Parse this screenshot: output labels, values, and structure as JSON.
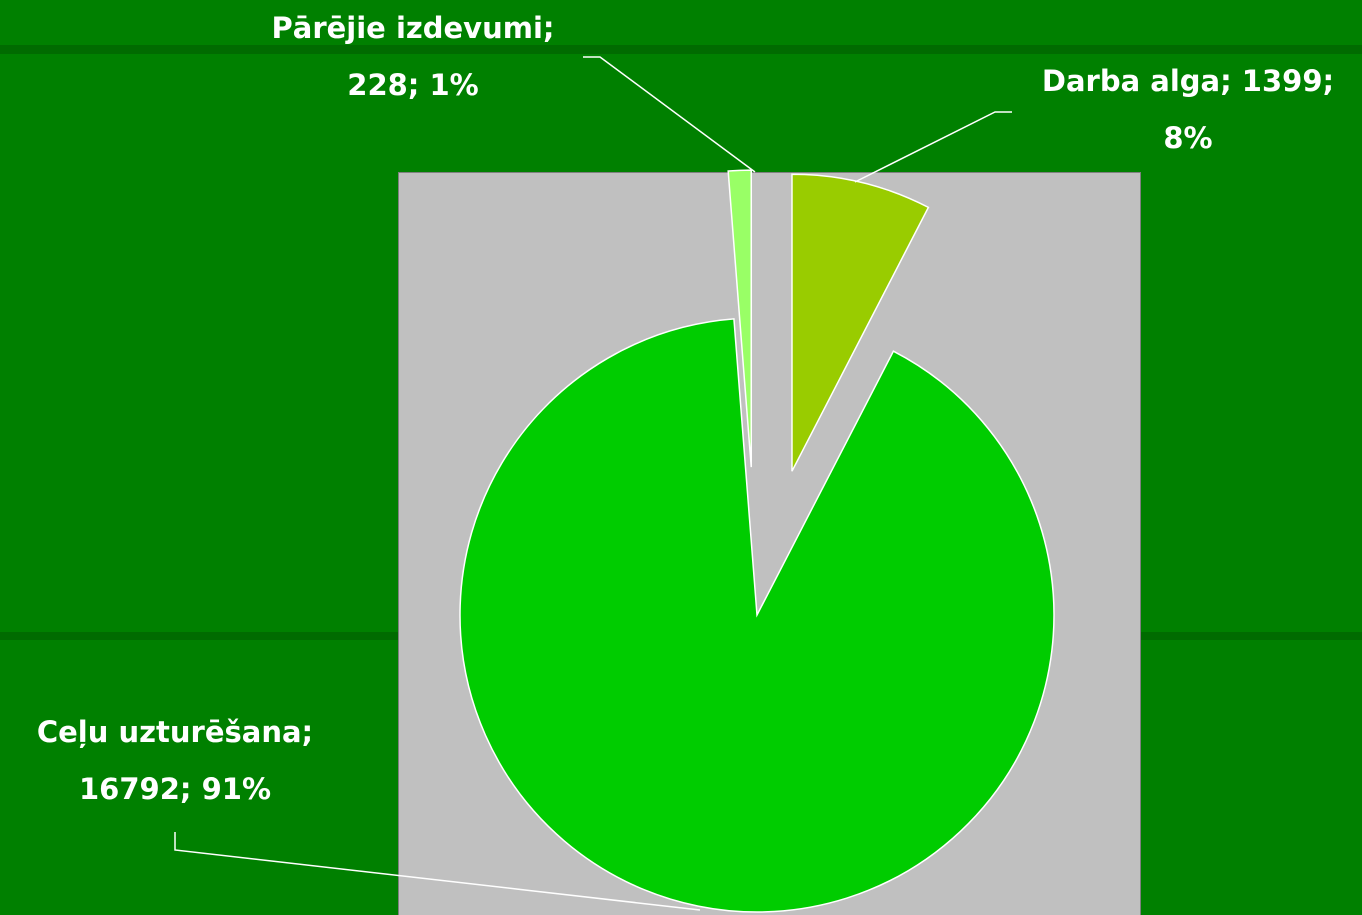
{
  "chart_data": {
    "type": "pie",
    "labels": [
      "Darba alga; 1399; 8%",
      "Ceļu uzturēšana; 16792; 91%",
      "Pārējie izdevumi; 228; 1%"
    ],
    "values": [
      1399,
      16792,
      228
    ],
    "colors": [
      "#99cc00",
      "#00cc00",
      "#99ff66"
    ]
  }
}
